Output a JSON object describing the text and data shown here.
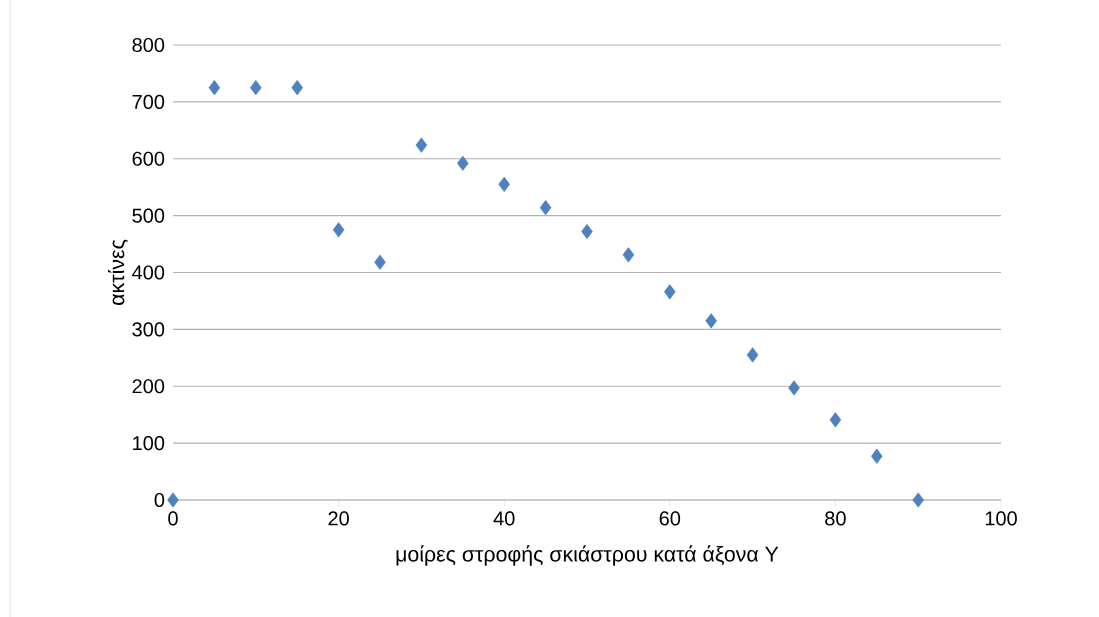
{
  "chart_data": {
    "type": "scatter",
    "xlabel": "μοίρες στροφής σκιάστρου κατά άξονα Υ",
    "ylabel": "ακτίνες",
    "x": [
      0,
      5,
      10,
      15,
      20,
      25,
      30,
      35,
      40,
      45,
      50,
      55,
      60,
      65,
      70,
      75,
      80,
      85,
      90
    ],
    "series": [
      {
        "color": "#4f81bd",
        "values": [
          0,
          725,
          725,
          725,
          475,
          418,
          624,
          592,
          555,
          514,
          472,
          431,
          366,
          315,
          255,
          197,
          141,
          77,
          0
        ]
      }
    ],
    "xlim": [
      0,
      100
    ],
    "xticks": [
      0,
      20,
      40,
      60,
      80,
      100
    ],
    "ylim": [
      0,
      800
    ],
    "yticks": [
      0,
      100,
      200,
      300,
      400,
      500,
      600,
      700,
      800
    ],
    "grid": "y",
    "marker": "diamond"
  }
}
